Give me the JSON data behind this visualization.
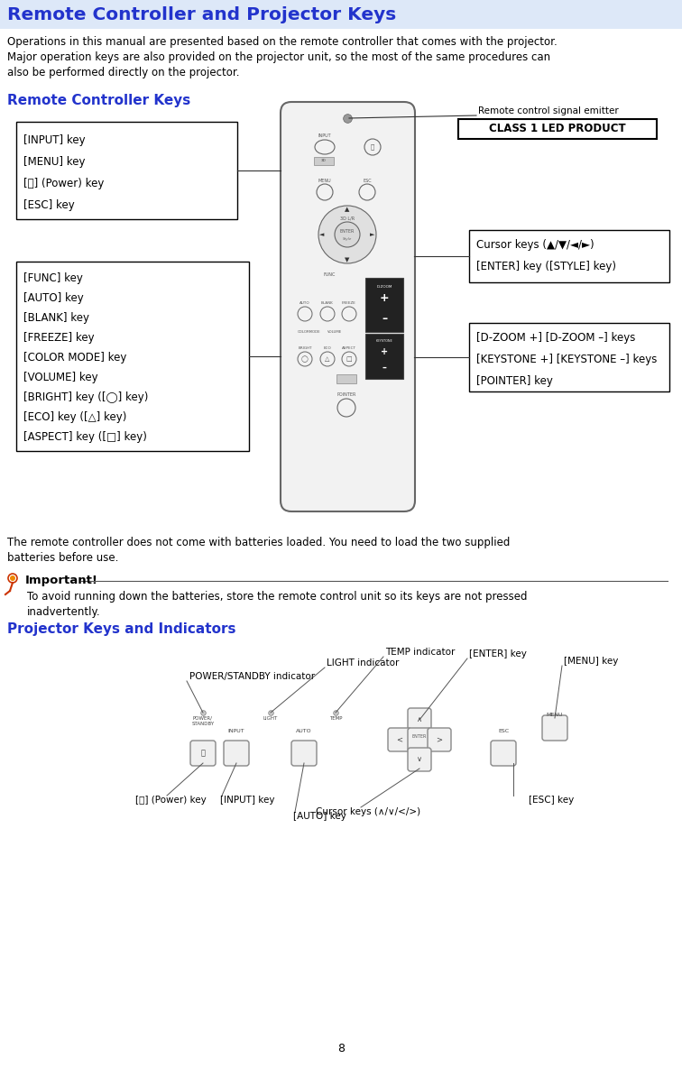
{
  "title": "Remote Controller and Projector Keys",
  "title_color": "#2233cc",
  "title_bg": "#dde8f8",
  "body_text1": "Operations in this manual are presented based on the remote controller that comes with the projector.",
  "body_text2": "Major operation keys are also provided on the projector unit, so the most of the same procedures can",
  "body_text3": "also be performed directly on the projector.",
  "section1": "Remote Controller Keys",
  "section2": "Projector Keys and Indicators",
  "section_color": "#2233cc",
  "box1_lines": [
    "[INPUT] key",
    "[MENU] key",
    "[⏻] (Power) key",
    "[ESC] key"
  ],
  "box2_lines": [
    "[FUNC] key",
    "[AUTO] key",
    "[BLANK] key",
    "[FREEZE] key",
    "[COLOR MODE] key",
    "[VOLUME] key",
    "[BRIGHT] key ([◯] key)",
    "[ECO] key ([△] key)",
    "[ASPECT] key ([□] key)"
  ],
  "box3_lines": [
    "Cursor keys (▲/▼/◄/►)",
    "[ENTER] key ([STYLE] key)"
  ],
  "box4_lines": [
    "[D-ZOOM +] [D-ZOOM –] keys",
    "[KEYSTONE +] [KEYSTONE –] keys",
    "[POINTER] key"
  ],
  "remote_signal_label": "Remote control signal emitter",
  "class1_label": "CLASS 1 LED PRODUCT",
  "battery_text1": "The remote controller does not come with batteries loaded. You need to load the two supplied",
  "battery_text2": "batteries before use.",
  "important_label": "Important!",
  "important_text1": "To avoid running down the batteries, store the remote control unit so its keys are not pressed",
  "important_text2": "inadvertently.",
  "proj_temp": "TEMP indicator",
  "proj_light": "LIGHT indicator",
  "proj_power_standby": "POWER/STANDBY indicator",
  "proj_enter": "[ENTER] key",
  "proj_menu": "[MENU] key",
  "proj_esc": "[ESC] key",
  "proj_input": "[INPUT] key",
  "proj_auto": "[AUTO] key",
  "proj_power": "[⏻] (Power) key",
  "proj_cursor": "Cursor keys (∧/∨/</>)",
  "page_number": "8",
  "bg_color": "#ffffff"
}
